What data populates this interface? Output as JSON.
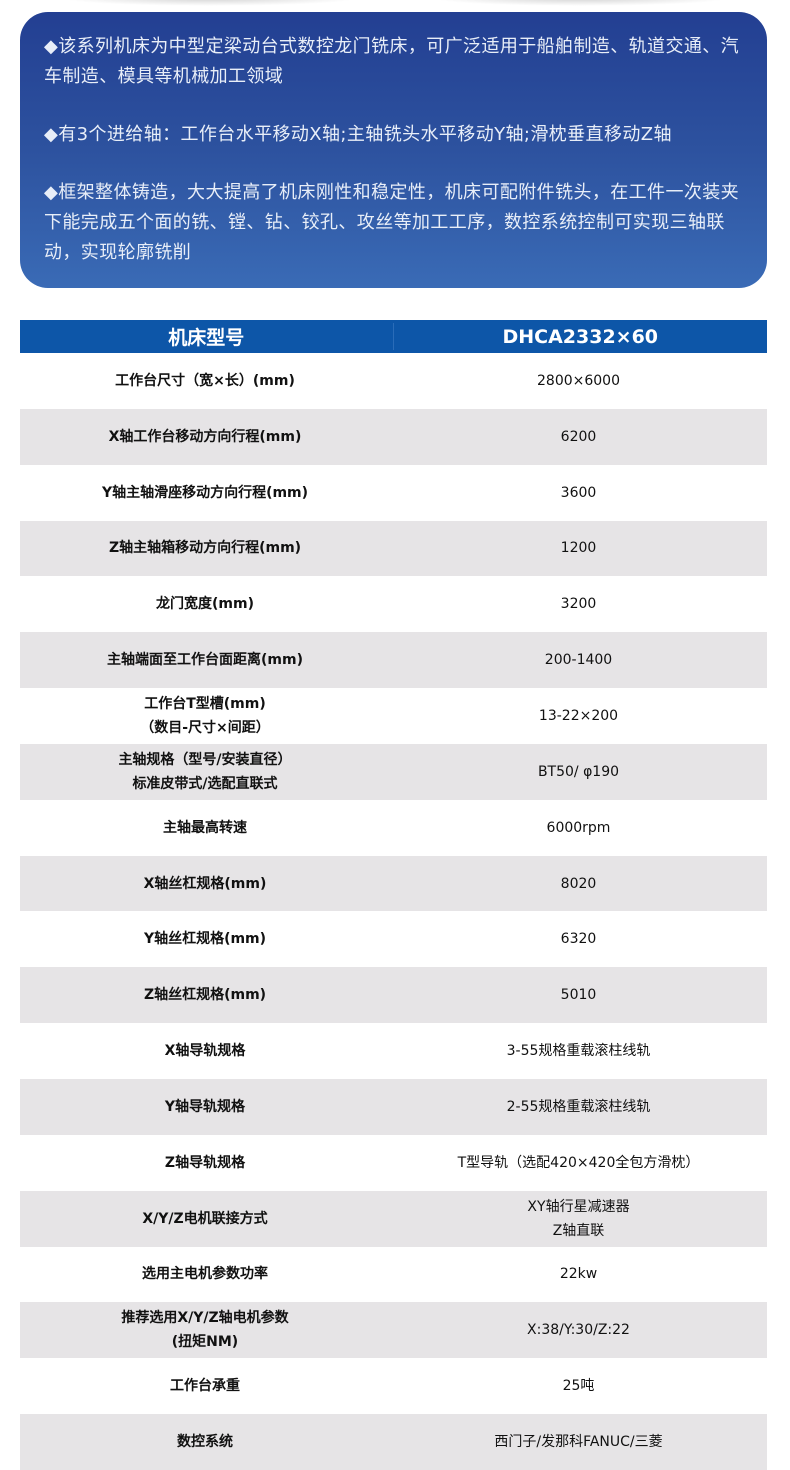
{
  "intro": {
    "paragraphs": [
      "◆该系列机床为中型定梁动台式数控龙门铣床，可广泛适用于船舶制造、轨道交通、汽车制造、模具等机械加工领域",
      "◆有3个进给轴：工作台水平移动X轴;主轴铣头水平移动Y轴;滑枕垂直移动Z轴",
      "◆框架整体铸造，大大提高了机床刚性和稳定性，机床可配附件铣头，在工件一次装夹下能完成五个面的铣、镗、钻、铰孔、攻丝等加工工序，数控系统控制可实现三轴联动，实现轮廓铣削"
    ]
  },
  "table": {
    "header": [
      "机床型号",
      "DHCA2332×60"
    ],
    "rows": [
      [
        "工作台尺寸（宽×长）(mm)",
        "2800×6000"
      ],
      [
        "X轴工作台移动方向行程(mm)",
        "6200"
      ],
      [
        "Y轴主轴滑座移动方向行程(mm)",
        "3600"
      ],
      [
        "Z轴主轴箱移动方向行程(mm)",
        "1200"
      ],
      [
        "龙门宽度(mm)",
        "3200"
      ],
      [
        "主轴端面至工作台面距离(mm)",
        "200-1400"
      ],
      [
        "工作台T型槽(mm)\n（数目-尺寸×间距）",
        "13-22×200"
      ],
      [
        "主轴规格（型号/安装直径）\n标准皮带式/选配直联式",
        "BT50/ φ190"
      ],
      [
        "主轴最高转速",
        "6000rpm"
      ],
      [
        "X轴丝杠规格(mm)",
        "8020"
      ],
      [
        "Y轴丝杠规格(mm)",
        "6320"
      ],
      [
        "Z轴丝杠规格(mm)",
        "5010"
      ],
      [
        "X轴导轨规格",
        "3-55规格重载滚柱线轨"
      ],
      [
        "Y轴导轨规格",
        "2-55规格重载滚柱线轨"
      ],
      [
        "Z轴导轨规格",
        "T型导轨（选配420×420全包方滑枕）"
      ],
      [
        "X/Y/Z电机联接方式",
        "XY轴行星减速器\nZ轴直联"
      ],
      [
        "选用主电机参数功率",
        "22kw"
      ],
      [
        "推荐选用X/Y/Z轴电机参数\n(扭矩NM)",
        "X:38/Y:30/Z:22"
      ],
      [
        "工作台承重",
        "25吨"
      ],
      [
        "数控系统",
        "西门子/发那科FANUC/三菱"
      ]
    ]
  },
  "colors": {
    "header": "#0d56a8",
    "intro_top": "#233f92",
    "intro_bottom": "#3a6bb6",
    "row_alt": "#e6e4e6"
  }
}
